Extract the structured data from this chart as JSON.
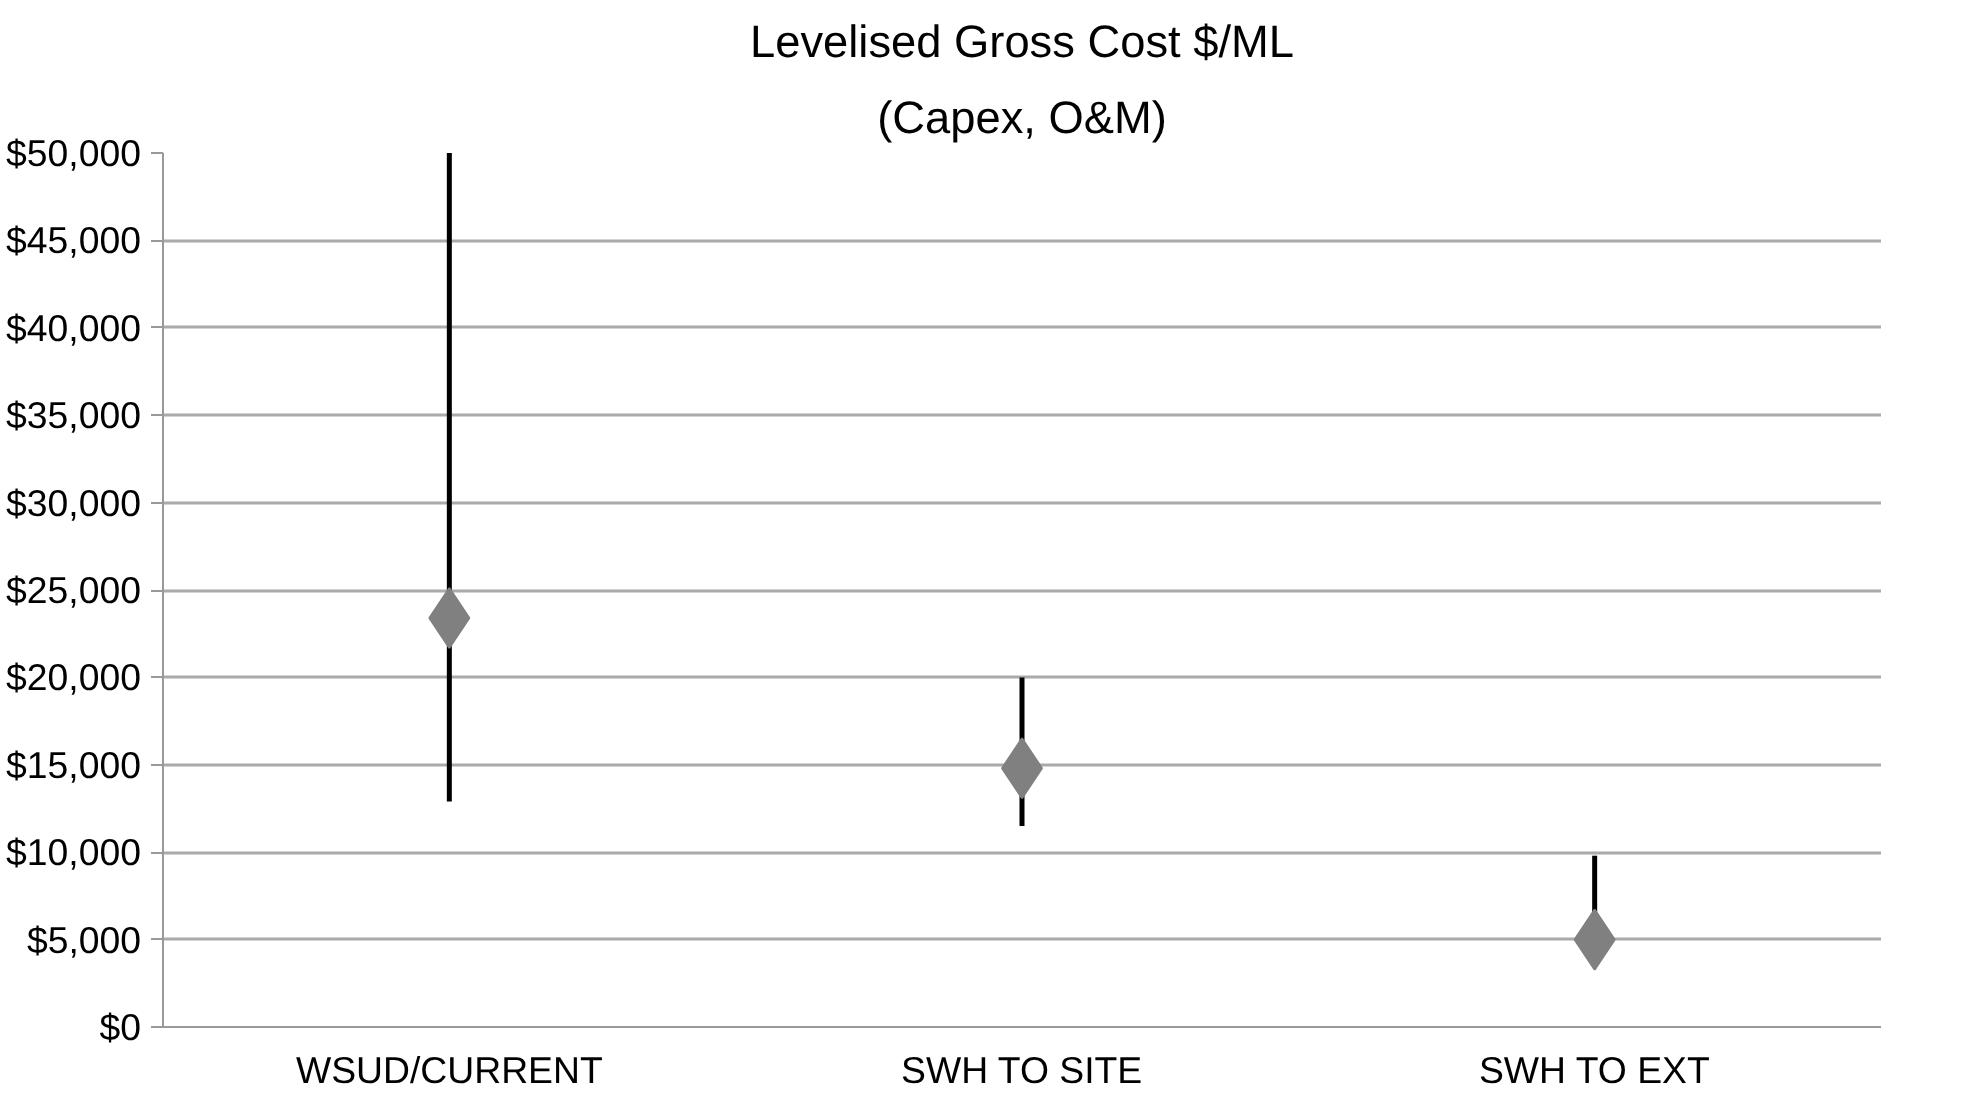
{
  "chart_data": {
    "type": "scatter",
    "title": "Levelised Gross Cost $/ML",
    "subtitle": "(Capex, O&M)",
    "categories": [
      "WSUD/CURRENT",
      "SWH TO SITE",
      "SWH TO EXT"
    ],
    "values": [
      23400,
      14800,
      5000
    ],
    "errors": [
      [
        12900,
        50000
      ],
      [
        11500,
        20000
      ],
      [
        5000,
        9800
      ]
    ],
    "color": "#808080",
    "marker": "diamond",
    "grid": "y",
    "ylim": [
      0,
      50000
    ],
    "yticks": [
      {
        "value": 0,
        "label": "$0"
      },
      {
        "value": 5000,
        "label": "$5,000"
      },
      {
        "value": 10000,
        "label": "$10,000"
      },
      {
        "value": 15000,
        "label": "$15,000"
      },
      {
        "value": 20000,
        "label": "$20,000"
      },
      {
        "value": 25000,
        "label": "$25,000"
      },
      {
        "value": 30000,
        "label": "$30,000"
      },
      {
        "value": 35000,
        "label": "$35,000"
      },
      {
        "value": 40000,
        "label": "$40,000"
      },
      {
        "value": 45000,
        "label": "$45,000"
      },
      {
        "value": 50000,
        "label": "$50,000"
      }
    ]
  }
}
